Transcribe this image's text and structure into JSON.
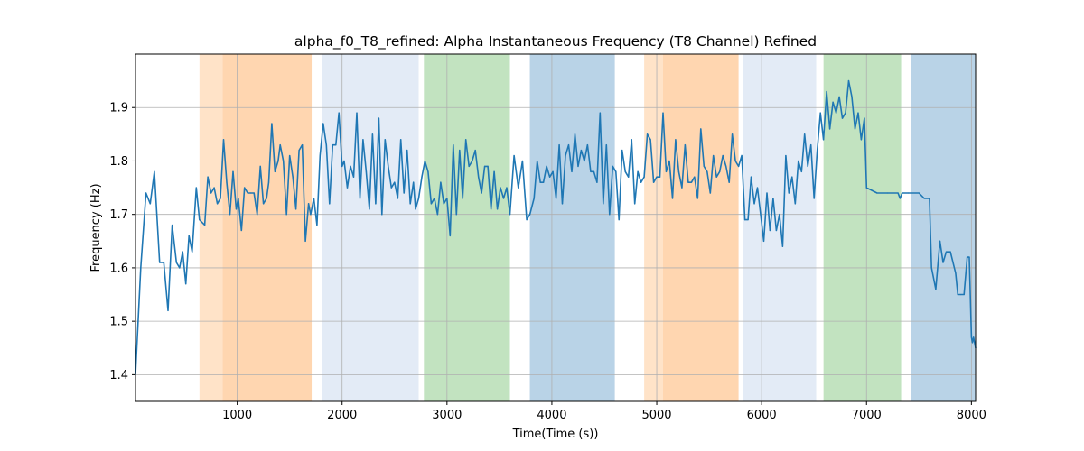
{
  "chart_data": {
    "type": "line",
    "title": "alpha_f0_T8_refined: Alpha Instantaneous Frequency (T8 Channel) Refined",
    "xlabel": "Time(Time (s))",
    "ylabel": "Frequency (Hz)",
    "xlim": [
      30,
      8040
    ],
    "ylim": [
      1.35,
      2.0
    ],
    "grid": true,
    "xticks": [
      1000,
      2000,
      3000,
      4000,
      5000,
      6000,
      7000,
      8000
    ],
    "yticks": [
      1.4,
      1.5,
      1.6,
      1.7,
      1.8,
      1.9
    ],
    "line_color": "#1f77b4",
    "bands": [
      {
        "x0": 640,
        "x1": 860,
        "color": "#ffe3c8"
      },
      {
        "x0": 860,
        "x1": 1710,
        "color": "#ffd6b0"
      },
      {
        "x0": 1810,
        "x1": 2730,
        "color": "#e3ebf6"
      },
      {
        "x0": 2780,
        "x1": 3600,
        "color": "#c2e3c0"
      },
      {
        "x0": 3790,
        "x1": 4600,
        "color": "#b9d3e7"
      },
      {
        "x0": 4880,
        "x1": 5060,
        "color": "#ffe3c8"
      },
      {
        "x0": 5060,
        "x1": 5780,
        "color": "#ffd6b0"
      },
      {
        "x0": 5820,
        "x1": 6520,
        "color": "#e3ebf6"
      },
      {
        "x0": 6590,
        "x1": 7330,
        "color": "#c2e3c0"
      },
      {
        "x0": 7420,
        "x1": 8040,
        "color": "#b9d3e7"
      }
    ],
    "series": [
      {
        "x": [
          30,
          80,
          130,
          170,
          210,
          260,
          300,
          340,
          380,
          420,
          450,
          480,
          510,
          540,
          570,
          610,
          640,
          690,
          720,
          750,
          780,
          810,
          840,
          870,
          900,
          930,
          960,
          990,
          1010,
          1040,
          1070,
          1100,
          1130,
          1160,
          1190,
          1220,
          1250,
          1280,
          1300,
          1330,
          1360,
          1390,
          1410,
          1440,
          1470,
          1500,
          1530,
          1560,
          1590,
          1620,
          1650,
          1680,
          1700,
          1730,
          1760,
          1790,
          1820,
          1850,
          1880,
          1910,
          1940,
          1970,
          2000,
          2020,
          2050,
          2080,
          2110,
          2140,
          2170,
          2200,
          2230,
          2260,
          2290,
          2320,
          2350,
          2380,
          2410,
          2440,
          2470,
          2500,
          2530,
          2560,
          2590,
          2620,
          2650,
          2680,
          2700,
          2730,
          2760,
          2790,
          2820,
          2850,
          2880,
          2910,
          2940,
          2970,
          3000,
          3030,
          3060,
          3090,
          3120,
          3150,
          3180,
          3210,
          3240,
          3270,
          3300,
          3330,
          3360,
          3390,
          3420,
          3450,
          3480,
          3510,
          3540,
          3570,
          3600,
          3640,
          3680,
          3720,
          3760,
          3790,
          3830,
          3860,
          3890,
          3920,
          3950,
          3980,
          4010,
          4040,
          4070,
          4100,
          4130,
          4160,
          4190,
          4220,
          4250,
          4280,
          4310,
          4340,
          4370,
          4400,
          4430,
          4460,
          4490,
          4520,
          4550,
          4580,
          4610,
          4640,
          4670,
          4700,
          4730,
          4760,
          4790,
          4820,
          4850,
          4880,
          4910,
          4940,
          4970,
          5000,
          5030,
          5060,
          5090,
          5120,
          5150,
          5180,
          5210,
          5240,
          5270,
          5300,
          5330,
          5360,
          5390,
          5420,
          5450,
          5480,
          5510,
          5540,
          5570,
          5600,
          5630,
          5660,
          5690,
          5720,
          5750,
          5780,
          5810,
          5840,
          5870,
          5900,
          5930,
          5960,
          5990,
          6020,
          6050,
          6080,
          6110,
          6140,
          6170,
          6200,
          6230,
          6260,
          6290,
          6320,
          6350,
          6380,
          6410,
          6440,
          6470,
          6500,
          6530,
          6560,
          6590,
          6620,
          6650,
          6680,
          6710,
          6740,
          6770,
          6800,
          6830,
          6860,
          6890,
          6920,
          6950,
          6980,
          7000,
          7100,
          7200,
          7300,
          7320,
          7340,
          7400,
          7500,
          7550,
          7600,
          7620,
          7660,
          7700,
          7730,
          7760,
          7800,
          7850,
          7870,
          7900,
          7930,
          7960,
          7980,
          8000,
          8010,
          8020,
          8040
        ],
        "y": [
          1.4,
          1.6,
          1.74,
          1.72,
          1.78,
          1.61,
          1.61,
          1.52,
          1.68,
          1.61,
          1.6,
          1.63,
          1.57,
          1.66,
          1.63,
          1.75,
          1.69,
          1.68,
          1.77,
          1.74,
          1.75,
          1.72,
          1.73,
          1.84,
          1.76,
          1.7,
          1.78,
          1.71,
          1.73,
          1.67,
          1.75,
          1.74,
          1.74,
          1.74,
          1.7,
          1.79,
          1.72,
          1.73,
          1.76,
          1.87,
          1.78,
          1.8,
          1.83,
          1.8,
          1.7,
          1.81,
          1.77,
          1.71,
          1.82,
          1.83,
          1.65,
          1.72,
          1.7,
          1.73,
          1.68,
          1.81,
          1.87,
          1.83,
          1.72,
          1.83,
          1.83,
          1.89,
          1.79,
          1.8,
          1.75,
          1.79,
          1.77,
          1.89,
          1.73,
          1.84,
          1.78,
          1.71,
          1.85,
          1.72,
          1.88,
          1.7,
          1.84,
          1.79,
          1.75,
          1.76,
          1.73,
          1.84,
          1.74,
          1.82,
          1.72,
          1.76,
          1.71,
          1.73,
          1.77,
          1.8,
          1.78,
          1.72,
          1.73,
          1.7,
          1.76,
          1.72,
          1.73,
          1.66,
          1.83,
          1.7,
          1.82,
          1.73,
          1.84,
          1.79,
          1.8,
          1.82,
          1.77,
          1.74,
          1.79,
          1.79,
          1.71,
          1.78,
          1.71,
          1.75,
          1.73,
          1.75,
          1.7,
          1.81,
          1.75,
          1.8,
          1.69,
          1.7,
          1.73,
          1.8,
          1.76,
          1.76,
          1.79,
          1.77,
          1.78,
          1.73,
          1.83,
          1.72,
          1.81,
          1.83,
          1.78,
          1.85,
          1.79,
          1.82,
          1.8,
          1.83,
          1.78,
          1.78,
          1.76,
          1.89,
          1.72,
          1.83,
          1.7,
          1.79,
          1.78,
          1.69,
          1.82,
          1.78,
          1.77,
          1.84,
          1.72,
          1.78,
          1.76,
          1.77,
          1.85,
          1.84,
          1.76,
          1.77,
          1.77,
          1.89,
          1.78,
          1.8,
          1.73,
          1.84,
          1.78,
          1.75,
          1.83,
          1.76,
          1.76,
          1.77,
          1.73,
          1.86,
          1.79,
          1.78,
          1.74,
          1.81,
          1.77,
          1.78,
          1.81,
          1.79,
          1.76,
          1.85,
          1.8,
          1.79,
          1.81,
          1.69,
          1.69,
          1.77,
          1.72,
          1.75,
          1.7,
          1.65,
          1.74,
          1.67,
          1.73,
          1.67,
          1.7,
          1.64,
          1.81,
          1.74,
          1.77,
          1.72,
          1.8,
          1.78,
          1.85,
          1.79,
          1.83,
          1.73,
          1.82,
          1.89,
          1.84,
          1.93,
          1.86,
          1.91,
          1.89,
          1.92,
          1.88,
          1.89,
          1.95,
          1.92,
          1.86,
          1.89,
          1.84,
          1.88,
          1.75,
          1.74,
          1.74,
          1.74,
          1.73,
          1.74,
          1.74,
          1.74,
          1.73,
          1.73,
          1.6,
          1.56,
          1.65,
          1.61,
          1.63,
          1.63,
          1.59,
          1.55,
          1.55,
          1.55,
          1.62,
          1.62,
          1.47,
          1.46,
          1.47,
          1.45
        ]
      }
    ]
  }
}
